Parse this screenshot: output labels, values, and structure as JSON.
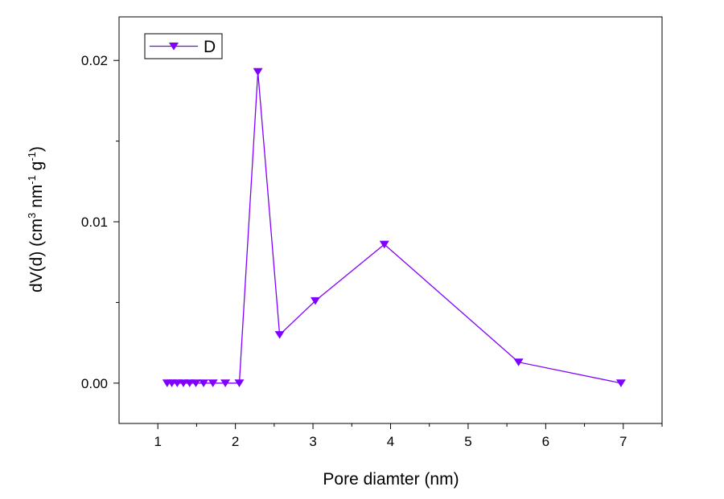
{
  "chart_data": {
    "type": "line",
    "xlabel": "Pore diamter (nm)",
    "ylabel": {
      "prefix": "dV(d) (cm",
      "sup1": "3",
      "mid1": " nm",
      "sup2": "-1",
      "mid2": " g",
      "sup3": "-1",
      "suffix": ")"
    },
    "xlim": [
      0.5,
      7.5
    ],
    "ylim": [
      -0.0025,
      0.0227
    ],
    "x_ticks": [
      1,
      2,
      3,
      4,
      5,
      6,
      7
    ],
    "x_tick_labels": [
      "1",
      "2",
      "3",
      "4",
      "5",
      "6",
      "7"
    ],
    "y_ticks": [
      0.0,
      0.01,
      0.02
    ],
    "y_tick_labels": [
      "0.00",
      "0.01",
      "0.02"
    ],
    "y_minor_ticks": [
      0.005,
      0.015
    ],
    "grid": false,
    "legend": {
      "position": "top-left"
    },
    "series": [
      {
        "name": "D",
        "color": "#8000ff",
        "marker": "triangle-down",
        "x": [
          1.12,
          1.18,
          1.25,
          1.33,
          1.41,
          1.49,
          1.59,
          1.71,
          1.87,
          2.05,
          2.29,
          2.57,
          3.03,
          3.92,
          5.65,
          6.97
        ],
        "y": [
          0.0,
          0.0,
          0.0,
          0.0,
          0.0,
          0.0,
          0.0,
          0.0,
          0.0,
          0.0,
          0.0193,
          0.003,
          0.0051,
          0.0086,
          0.0013,
          0.0
        ]
      }
    ]
  }
}
